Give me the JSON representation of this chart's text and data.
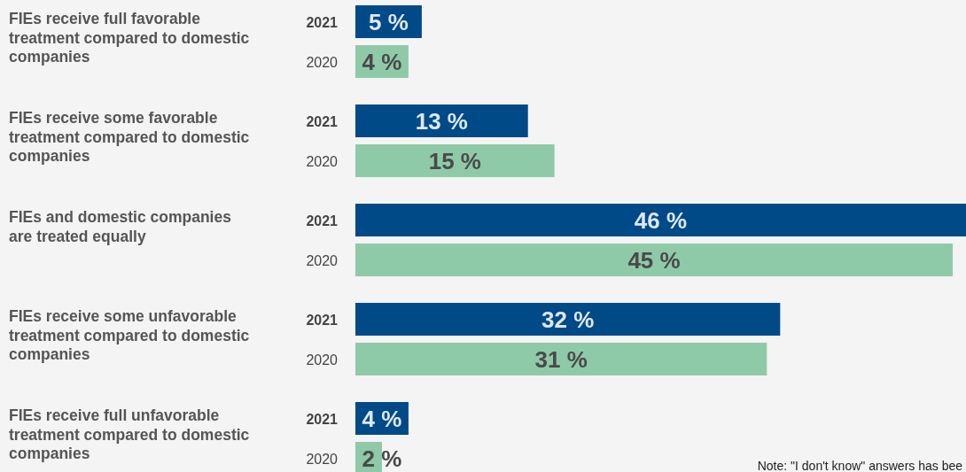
{
  "chart_data": {
    "type": "bar",
    "orientation": "horizontal",
    "categories": [
      "FIEs receive full favorable treatment compared to domestic companies",
      "FIEs receive some favorable treatment compared to domestic companies",
      "FIEs and domestic companies are treated equally",
      "FIEs receive some unfavorable treatment compared to domestic companies",
      "FIEs receive full unfavorable treatment compared to domestic companies"
    ],
    "series": [
      {
        "name": "2021",
        "color": "#004a87",
        "values": [
          5,
          13,
          46,
          32,
          4
        ],
        "value_labels": [
          "5 %",
          "13 %",
          "46 %",
          "32 %",
          "4 %"
        ]
      },
      {
        "name": "2020",
        "color": "#8fcaa8",
        "values": [
          4,
          15,
          45,
          31,
          2
        ],
        "value_labels": [
          "4 %",
          "15 %",
          "45 %",
          "31 %",
          "2 %"
        ]
      }
    ],
    "annotations": [
      "Note: \"I don't know\" answers has bee"
    ]
  }
}
